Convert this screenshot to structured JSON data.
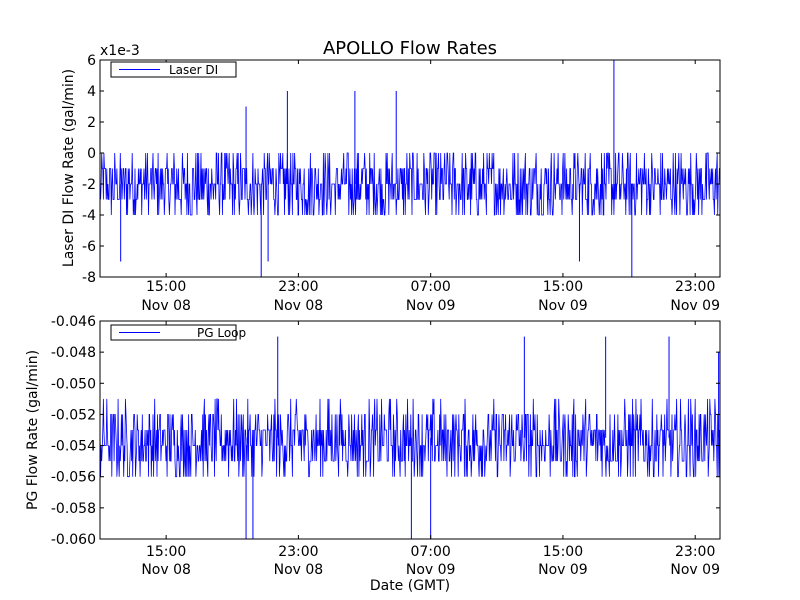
{
  "figure": {
    "title": "APOLLO Flow Rates",
    "xlabel": "Date (GMT)",
    "line_color": "#0000ff",
    "background": "#ffffff"
  },
  "chart_data": [
    {
      "type": "line",
      "title": "APOLLO Flow Rates",
      "ylabel": "Laser DI Flow Rate (gal/min)",
      "y_scale_note": "x1e-3",
      "ylim": [
        -8,
        6
      ],
      "yticks": [
        -8,
        -6,
        -4,
        -2,
        0,
        2,
        4,
        6
      ],
      "ytick_labels": [
        "-8",
        "-6",
        "-4",
        "-2",
        "0",
        "2",
        "4",
        "6"
      ],
      "xlim": [
        "2008-11-08 11:00",
        "2008-11-10 00:30"
      ],
      "xticks": [
        "2008-11-08 15:00",
        "2008-11-08 23:00",
        "2008-11-09 07:00",
        "2008-11-09 15:00",
        "2008-11-09 23:00"
      ],
      "xtick_labels": [
        [
          "15:00",
          "Nov 08"
        ],
        [
          "23:00",
          "Nov 08"
        ],
        [
          "07:00",
          "Nov 09"
        ],
        [
          "15:00",
          "Nov 09"
        ],
        [
          "23:00",
          "Nov 09"
        ]
      ],
      "legend_position": "top-left",
      "series": [
        {
          "name": "Laser DI",
          "color": "#0000ff",
          "baseline": -2,
          "levels": [
            -4,
            -3,
            -2,
            -1,
            0
          ],
          "level_weights": [
            0.14,
            0.24,
            0.28,
            0.22,
            0.12
          ],
          "spikes": [
            {
              "x": "2008-11-08 20:45",
              "y": -8
            },
            {
              "x": "2008-11-08 19:50",
              "y": 3
            },
            {
              "x": "2008-11-08 22:20",
              "y": 4
            },
            {
              "x": "2008-11-09 02:25",
              "y": 4
            },
            {
              "x": "2008-11-09 04:55",
              "y": 4
            },
            {
              "x": "2008-11-08 12:15",
              "y": -7
            },
            {
              "x": "2008-11-08 21:10",
              "y": -7
            },
            {
              "x": "2008-11-09 18:05",
              "y": 6
            },
            {
              "x": "2008-11-09 19:10",
              "y": -8
            },
            {
              "x": "2008-11-09 16:00",
              "y": -7
            }
          ]
        }
      ]
    },
    {
      "type": "line",
      "ylabel": "PG Flow Rate (gal/min)",
      "ylim": [
        -0.06,
        -0.046
      ],
      "yticks": [
        -0.06,
        -0.058,
        -0.056,
        -0.054,
        -0.052,
        -0.05,
        -0.048,
        -0.046
      ],
      "ytick_labels": [
        "-0.060",
        "-0.058",
        "-0.056",
        "-0.054",
        "-0.052",
        "-0.050",
        "-0.048",
        "-0.046"
      ],
      "xlim": [
        "2008-11-08 11:00",
        "2008-11-10 00:30"
      ],
      "xticks": [
        "2008-11-08 15:00",
        "2008-11-08 23:00",
        "2008-11-09 07:00",
        "2008-11-09 15:00",
        "2008-11-09 23:00"
      ],
      "xtick_labels": [
        [
          "15:00",
          "Nov 08"
        ],
        [
          "23:00",
          "Nov 08"
        ],
        [
          "07:00",
          "Nov 09"
        ],
        [
          "15:00",
          "Nov 09"
        ],
        [
          "23:00",
          "Nov 09"
        ]
      ],
      "xlabel": "Date (GMT)",
      "legend_position": "top-left",
      "series": [
        {
          "name": "PG Loop",
          "color": "#0000ff",
          "baseline": -0.0535,
          "levels": [
            -0.056,
            -0.055,
            -0.054,
            -0.053,
            -0.052,
            -0.051
          ],
          "level_weights": [
            0.1,
            0.2,
            0.25,
            0.25,
            0.15,
            0.05
          ],
          "spikes": [
            {
              "x": "2008-11-08 19:50",
              "y": -0.06
            },
            {
              "x": "2008-11-08 20:15",
              "y": -0.06
            },
            {
              "x": "2008-11-09 07:00",
              "y": -0.06
            },
            {
              "x": "2008-11-09 05:50",
              "y": -0.06
            },
            {
              "x": "2008-11-08 21:45",
              "y": -0.047
            },
            {
              "x": "2008-11-09 12:40",
              "y": -0.047
            },
            {
              "x": "2008-11-10 00:25",
              "y": -0.048
            },
            {
              "x": "2008-11-09 17:35",
              "y": -0.047
            },
            {
              "x": "2008-11-09 21:25",
              "y": -0.047
            }
          ]
        }
      ]
    }
  ]
}
